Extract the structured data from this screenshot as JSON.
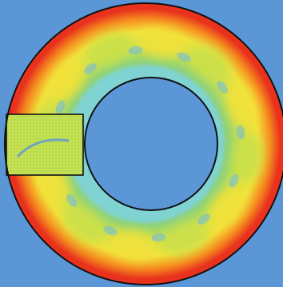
{
  "figure": {
    "kind": "annular flow field visualization",
    "colors": {
      "background": "#5b97d6",
      "outline": "#111111",
      "hot_red": "#e8321e",
      "orange": "#f58a1f",
      "yellow": "#f2e23a",
      "yellow_green": "#c9e04a",
      "green": "#8fd27a",
      "cyan": "#7fd3d3",
      "light_blue": "#6fb8e6"
    }
  }
}
